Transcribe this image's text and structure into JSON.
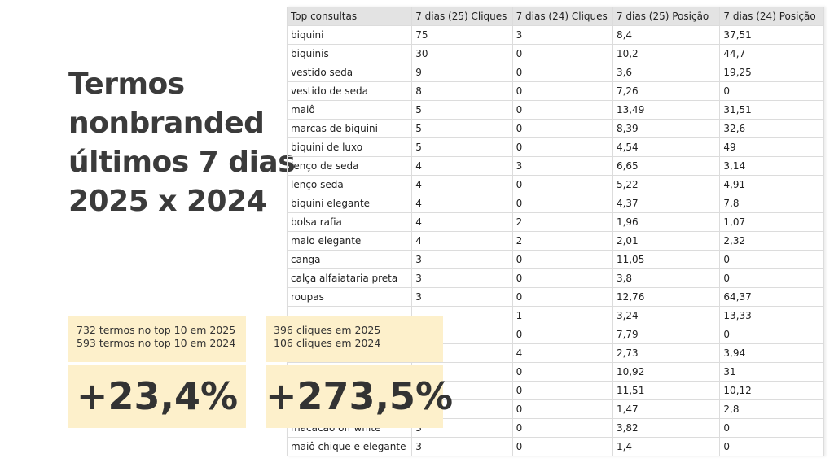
{
  "title_lines": [
    "Termos",
    "nonbranded",
    "últimos 7 dias",
    "2025 x 2024"
  ],
  "cards": [
    {
      "lines": [
        "732 termos no top 10 em 2025",
        "593 termos no top 10 em 2024"
      ],
      "big": "+23,4%"
    },
    {
      "lines": [
        "396 cliques em 2025",
        "106 cliques em 2024"
      ],
      "big": "+273,5%"
    }
  ],
  "table": {
    "header": [
      "Top consultas",
      "7 dias (25) Cliques",
      "7 dias (24) Cliques",
      "7 dias (25) Posição",
      "7 dias (24) Posição"
    ],
    "rows": [
      [
        "biquini",
        "75",
        "3",
        "8,4",
        "37,51"
      ],
      [
        "biquinis",
        "30",
        "0",
        "10,2",
        "44,7"
      ],
      [
        "vestido seda",
        "9",
        "0",
        "3,6",
        "19,25"
      ],
      [
        "vestido de seda",
        "8",
        "0",
        "7,26",
        "0"
      ],
      [
        "maiô",
        "5",
        "0",
        "13,49",
        "31,51"
      ],
      [
        "marcas de biquini",
        "5",
        "0",
        "8,39",
        "32,6"
      ],
      [
        "biquini de luxo",
        "5",
        "0",
        "4,54",
        "49"
      ],
      [
        "lenço de seda",
        "4",
        "3",
        "6,65",
        "3,14"
      ],
      [
        "lenço seda",
        "4",
        "0",
        "5,22",
        "4,91"
      ],
      [
        "biquini elegante",
        "4",
        "0",
        "4,37",
        "7,8"
      ],
      [
        "bolsa rafia",
        "4",
        "2",
        "1,96",
        "1,07"
      ],
      [
        "maio elegante",
        "4",
        "2",
        "2,01",
        "2,32"
      ],
      [
        "canga",
        "3",
        "0",
        "11,05",
        "0"
      ],
      [
        "calça alfaiataria preta",
        "3",
        "0",
        "3,8",
        "0"
      ],
      [
        "roupas",
        "3",
        "0",
        "12,76",
        "64,37"
      ],
      [
        null,
        null,
        "1",
        "3,24",
        "13,33"
      ],
      [
        null,
        null,
        "0",
        "7,79",
        "0"
      ],
      [
        null,
        null,
        "4",
        "2,73",
        "3,94"
      ],
      [
        null,
        null,
        "0",
        "10,92",
        "31"
      ],
      [
        null,
        null,
        "0",
        "11,51",
        "10,12"
      ],
      [
        null,
        null,
        "0",
        "1,47",
        "2,8"
      ],
      [
        "macacão off white",
        "3",
        "0",
        "3,82",
        "0"
      ],
      [
        "maiô chique e elegante",
        "3",
        "0",
        "1,4",
        "0"
      ]
    ]
  }
}
